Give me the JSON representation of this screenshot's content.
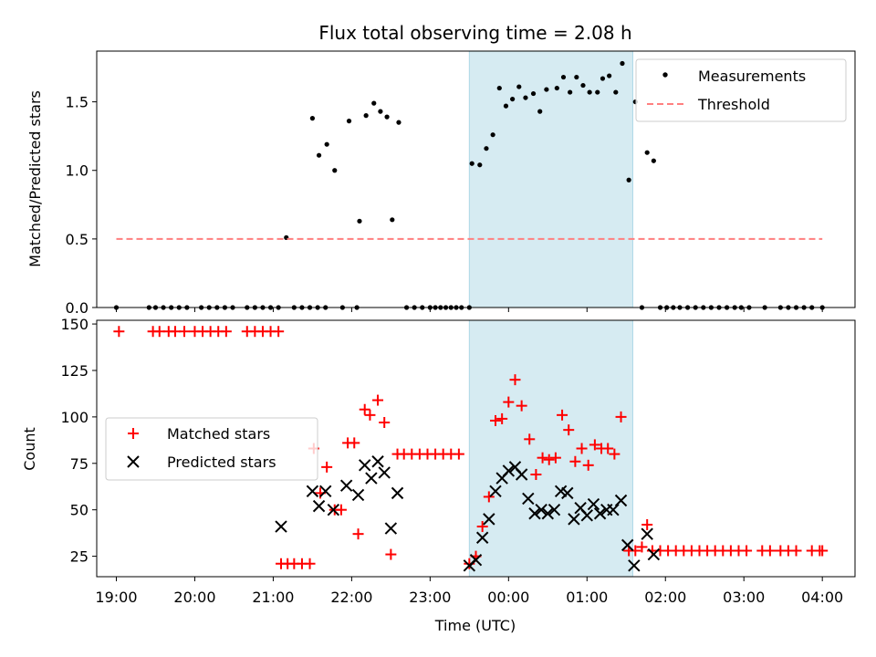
{
  "chart_data": [
    {
      "type": "scatter",
      "title": "Flux total observing time = 2.08 h",
      "xlabel": "",
      "ylabel": "Matched/Predicted stars",
      "xlim": [
        "18:45",
        "04:25"
      ],
      "ylim": [
        0,
        1.87
      ],
      "yticks": [
        0.0,
        0.5,
        1.0,
        1.5
      ],
      "ytick_labels": [
        "0.0",
        "0.5",
        "1.0",
        "1.5"
      ],
      "grid": false,
      "legend_position": "top-right",
      "highlight_span": {
        "start": "23:30",
        "end": "01:35",
        "color": "#add8e6"
      },
      "series": [
        {
          "name": "Measurements",
          "marker": "dot",
          "color": "#000000",
          "points": [
            [
              "19:00",
              0
            ],
            [
              "19:25",
              0
            ],
            [
              "19:30",
              0
            ],
            [
              "19:36",
              0
            ],
            [
              "19:42",
              0
            ],
            [
              "19:48",
              0
            ],
            [
              "19:54",
              0
            ],
            [
              "20:05",
              0
            ],
            [
              "20:11",
              0
            ],
            [
              "20:17",
              0
            ],
            [
              "20:23",
              0
            ],
            [
              "20:29",
              0
            ],
            [
              "20:40",
              0
            ],
            [
              "20:46",
              0
            ],
            [
              "20:52",
              0
            ],
            [
              "20:58",
              0
            ],
            [
              "21:04",
              0
            ],
            [
              "21:10",
              0.51
            ],
            [
              "21:16",
              0
            ],
            [
              "21:22",
              0
            ],
            [
              "21:28",
              0
            ],
            [
              "21:34",
              0
            ],
            [
              "21:40",
              0
            ],
            [
              "21:30",
              1.38
            ],
            [
              "21:35",
              1.11
            ],
            [
              "21:41",
              1.19
            ],
            [
              "21:47",
              1.0
            ],
            [
              "21:53",
              0
            ],
            [
              "21:58",
              1.36
            ],
            [
              "22:04",
              0
            ],
            [
              "22:06",
              0.63
            ],
            [
              "22:11",
              1.4
            ],
            [
              "22:17",
              1.49
            ],
            [
              "22:22",
              1.43
            ],
            [
              "22:27",
              1.39
            ],
            [
              "22:31",
              0.64
            ],
            [
              "22:36",
              1.35
            ],
            [
              "22:42",
              0
            ],
            [
              "22:48",
              0
            ],
            [
              "22:54",
              0
            ],
            [
              "23:00",
              0
            ],
            [
              "23:04",
              0
            ],
            [
              "23:08",
              0
            ],
            [
              "23:12",
              0
            ],
            [
              "23:16",
              0
            ],
            [
              "23:20",
              0
            ],
            [
              "23:24",
              0
            ],
            [
              "23:30",
              0
            ],
            [
              "23:32",
              1.05
            ],
            [
              "23:38",
              1.04
            ],
            [
              "23:43",
              1.16
            ],
            [
              "23:48",
              1.26
            ],
            [
              "23:53",
              1.6
            ],
            [
              "23:58",
              1.47
            ],
            [
              "00:03",
              1.52
            ],
            [
              "00:08",
              1.61
            ],
            [
              "00:13",
              1.53
            ],
            [
              "00:19",
              1.56
            ],
            [
              "00:24",
              1.43
            ],
            [
              "00:29",
              1.59
            ],
            [
              "00:37",
              1.6
            ],
            [
              "00:42",
              1.68
            ],
            [
              "00:47",
              1.57
            ],
            [
              "00:52",
              1.68
            ],
            [
              "00:57",
              1.62
            ],
            [
              "01:02",
              1.57
            ],
            [
              "01:08",
              1.57
            ],
            [
              "01:12",
              1.67
            ],
            [
              "01:17",
              1.69
            ],
            [
              "01:22",
              1.57
            ],
            [
              "01:27",
              1.78
            ],
            [
              "01:32",
              0.93
            ],
            [
              "01:37",
              1.5
            ],
            [
              "01:42",
              0
            ],
            [
              "01:46",
              1.13
            ],
            [
              "01:51",
              1.07
            ],
            [
              "01:56",
              0
            ],
            [
              "02:01",
              0
            ],
            [
              "02:06",
              0
            ],
            [
              "02:11",
              0
            ],
            [
              "02:17",
              0
            ],
            [
              "02:23",
              0
            ],
            [
              "02:29",
              0
            ],
            [
              "02:35",
              0
            ],
            [
              "02:41",
              0
            ],
            [
              "02:47",
              0
            ],
            [
              "02:53",
              0
            ],
            [
              "02:58",
              0
            ],
            [
              "03:04",
              0
            ],
            [
              "03:16",
              0
            ],
            [
              "03:28",
              0
            ],
            [
              "03:34",
              0
            ],
            [
              "03:40",
              0
            ],
            [
              "03:46",
              0
            ],
            [
              "03:52",
              0
            ],
            [
              "04:00",
              0
            ]
          ]
        },
        {
          "name": "Threshold",
          "marker": "dashed-line",
          "color": "#ff7f7f",
          "points": [
            [
              "19:00",
              0.5
            ],
            [
              "04:00",
              0.5
            ]
          ]
        }
      ]
    },
    {
      "type": "scatter",
      "title": "",
      "xlabel": "Time (UTC)",
      "ylabel": "Count",
      "xlim": [
        "18:45",
        "04:25"
      ],
      "ylim": [
        14,
        152
      ],
      "yticks": [
        25,
        50,
        75,
        100,
        125,
        150
      ],
      "ytick_labels": [
        "25",
        "50",
        "75",
        "100",
        "125",
        "150"
      ],
      "xticks": [
        "19:00",
        "20:00",
        "21:00",
        "22:00",
        "23:00",
        "00:00",
        "01:00",
        "02:00",
        "03:00",
        "04:00"
      ],
      "xtick_labels": [
        "19:00",
        "20:00",
        "21:00",
        "22:00",
        "23:00",
        "00:00",
        "01:00",
        "02:00",
        "03:00",
        "04:00"
      ],
      "grid": false,
      "legend_position": "center-left",
      "highlight_span": {
        "start": "23:30",
        "end": "01:35",
        "color": "#add8e6"
      },
      "series": [
        {
          "name": "Matched stars",
          "marker": "plus",
          "color": "#ff0000",
          "points": [
            [
              "19:02",
              146
            ],
            [
              "19:28",
              146
            ],
            [
              "19:33",
              146
            ],
            [
              "19:40",
              146
            ],
            [
              "19:45",
              146
            ],
            [
              "19:52",
              146
            ],
            [
              "20:00",
              146
            ],
            [
              "20:06",
              146
            ],
            [
              "20:12",
              146
            ],
            [
              "20:18",
              146
            ],
            [
              "20:24",
              146
            ],
            [
              "20:40",
              146
            ],
            [
              "20:46",
              146
            ],
            [
              "20:52",
              146
            ],
            [
              "20:58",
              146
            ],
            [
              "21:04",
              146
            ],
            [
              "21:06",
              21
            ],
            [
              "21:11",
              21
            ],
            [
              "21:16",
              21
            ],
            [
              "21:22",
              21
            ],
            [
              "21:28",
              21
            ],
            [
              "21:31",
              83
            ],
            [
              "21:36",
              59
            ],
            [
              "21:41",
              73
            ],
            [
              "21:47",
              50
            ],
            [
              "21:52",
              50
            ],
            [
              "21:57",
              86
            ],
            [
              "22:02",
              86
            ],
            [
              "22:05",
              37
            ],
            [
              "22:10",
              104
            ],
            [
              "22:14",
              101
            ],
            [
              "22:20",
              109
            ],
            [
              "22:25",
              97
            ],
            [
              "22:30",
              26
            ],
            [
              "22:35",
              80
            ],
            [
              "22:40",
              80
            ],
            [
              "22:46",
              80
            ],
            [
              "22:52",
              80
            ],
            [
              "22:58",
              80
            ],
            [
              "23:04",
              80
            ],
            [
              "23:10",
              80
            ],
            [
              "23:16",
              80
            ],
            [
              "23:22",
              80
            ],
            [
              "23:30",
              21
            ],
            [
              "23:35",
              25
            ],
            [
              "23:40",
              41
            ],
            [
              "23:45",
              57
            ],
            [
              "23:50",
              98
            ],
            [
              "23:55",
              99
            ],
            [
              "00:00",
              108
            ],
            [
              "00:05",
              120
            ],
            [
              "00:10",
              106
            ],
            [
              "00:16",
              88
            ],
            [
              "00:21",
              69
            ],
            [
              "00:26",
              78
            ],
            [
              "00:31",
              77
            ],
            [
              "00:36",
              78
            ],
            [
              "00:41",
              101
            ],
            [
              "00:46",
              93
            ],
            [
              "00:51",
              76
            ],
            [
              "00:56",
              83
            ],
            [
              "01:01",
              74
            ],
            [
              "01:06",
              85
            ],
            [
              "01:11",
              83
            ],
            [
              "01:16",
              83
            ],
            [
              "01:21",
              80
            ],
            [
              "01:26",
              100
            ],
            [
              "01:32",
              28
            ],
            [
              "01:37",
              28
            ],
            [
              "01:42",
              30
            ],
            [
              "01:46",
              42
            ],
            [
              "01:50",
              28
            ],
            [
              "01:56",
              28
            ],
            [
              "02:02",
              28
            ],
            [
              "02:08",
              28
            ],
            [
              "02:14",
              28
            ],
            [
              "02:20",
              28
            ],
            [
              "02:26",
              28
            ],
            [
              "02:32",
              28
            ],
            [
              "02:38",
              28
            ],
            [
              "02:44",
              28
            ],
            [
              "02:50",
              28
            ],
            [
              "02:56",
              28
            ],
            [
              "03:02",
              28
            ],
            [
              "03:14",
              28
            ],
            [
              "03:20",
              28
            ],
            [
              "03:28",
              28
            ],
            [
              "03:34",
              28
            ],
            [
              "03:40",
              28
            ],
            [
              "03:52",
              28
            ],
            [
              "03:58",
              28
            ],
            [
              "04:00",
              28
            ]
          ]
        },
        {
          "name": "Predicted stars",
          "marker": "x",
          "color": "#000000",
          "points": [
            [
              "21:06",
              41
            ],
            [
              "21:30",
              60
            ],
            [
              "21:35",
              52
            ],
            [
              "21:40",
              60
            ],
            [
              "21:46",
              50
            ],
            [
              "21:56",
              63
            ],
            [
              "22:05",
              58
            ],
            [
              "22:10",
              74
            ],
            [
              "22:15",
              67
            ],
            [
              "22:20",
              76
            ],
            [
              "22:25",
              70
            ],
            [
              "22:30",
              40
            ],
            [
              "22:35",
              59
            ],
            [
              "23:30",
              20
            ],
            [
              "23:35",
              23
            ],
            [
              "23:40",
              35
            ],
            [
              "23:45",
              45
            ],
            [
              "23:50",
              60
            ],
            [
              "23:55",
              67
            ],
            [
              "00:00",
              71
            ],
            [
              "00:05",
              73
            ],
            [
              "00:10",
              69
            ],
            [
              "00:15",
              56
            ],
            [
              "00:20",
              48
            ],
            [
              "00:25",
              50
            ],
            [
              "00:30",
              48
            ],
            [
              "00:35",
              50
            ],
            [
              "00:40",
              60
            ],
            [
              "00:45",
              59
            ],
            [
              "00:50",
              45
            ],
            [
              "00:55",
              51
            ],
            [
              "01:00",
              47
            ],
            [
              "01:05",
              53
            ],
            [
              "01:10",
              48
            ],
            [
              "01:15",
              50
            ],
            [
              "01:20",
              50
            ],
            [
              "01:26",
              55
            ],
            [
              "01:31",
              31
            ],
            [
              "01:36",
              20
            ],
            [
              "01:46",
              37
            ],
            [
              "01:51",
              26
            ]
          ]
        }
      ]
    }
  ]
}
